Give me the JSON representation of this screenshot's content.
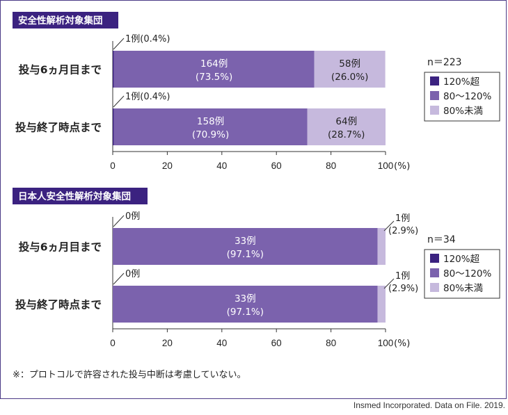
{
  "colors": {
    "over_120": "#3b2280",
    "range_80_120": "#7b62ad",
    "under_80": "#c6b9dd",
    "header_bg": "#3b2280",
    "frame": "#4b3a86"
  },
  "x_axis": {
    "ticks": [
      "0",
      "20",
      "40",
      "60",
      "80",
      "100"
    ],
    "unit": "(%)",
    "xlim": [
      0,
      100
    ]
  },
  "footnote": "※：プロトコルで許容された投与中断は考慮していない。",
  "source": "Insmed Incorporated. Data on File. 2019.",
  "chart_data": [
    {
      "type": "bar",
      "orientation": "horizontal",
      "stacked": true,
      "title": "安全性解析対象集団",
      "n_label": "n＝223",
      "legend": [
        "120%超",
        "80～120%",
        "80%未満"
      ],
      "legend_position": "right",
      "categories": [
        "投与6ヵ月目まで",
        "投与終了時点まで"
      ],
      "series": [
        {
          "name": "120%超",
          "values": [
            0.4,
            0.4
          ],
          "labels": [
            "1例(0.4%)",
            "1例(0.4%)"
          ]
        },
        {
          "name": "80～120%",
          "values": [
            73.5,
            70.9
          ],
          "counts": [
            "164例",
            "158例"
          ],
          "pcts": [
            "(73.5%)",
            "(70.9%)"
          ]
        },
        {
          "name": "80%未満",
          "values": [
            26.0,
            28.7
          ],
          "counts": [
            "58例",
            "64例"
          ],
          "pcts": [
            "(26.0%)",
            "(28.7%)"
          ]
        }
      ]
    },
    {
      "type": "bar",
      "orientation": "horizontal",
      "stacked": true,
      "title": "日本人安全性解析対象集団",
      "n_label": "n＝34",
      "legend": [
        "120%超",
        "80～120%",
        "80%未満"
      ],
      "legend_position": "right",
      "categories": [
        "投与6ヵ月目まで",
        "投与終了時点まで"
      ],
      "series": [
        {
          "name": "120%超",
          "values": [
            0,
            0
          ],
          "labels": [
            "0例",
            "0例"
          ]
        },
        {
          "name": "80～120%",
          "values": [
            97.1,
            97.1
          ],
          "counts": [
            "33例",
            "33例"
          ],
          "pcts": [
            "(97.1%)",
            "(97.1%)"
          ]
        },
        {
          "name": "80%未満",
          "values": [
            2.9,
            2.9
          ],
          "counts": [
            "1例",
            "1例"
          ],
          "pcts": [
            "(2.9%)",
            "(2.9%)"
          ]
        }
      ]
    }
  ]
}
